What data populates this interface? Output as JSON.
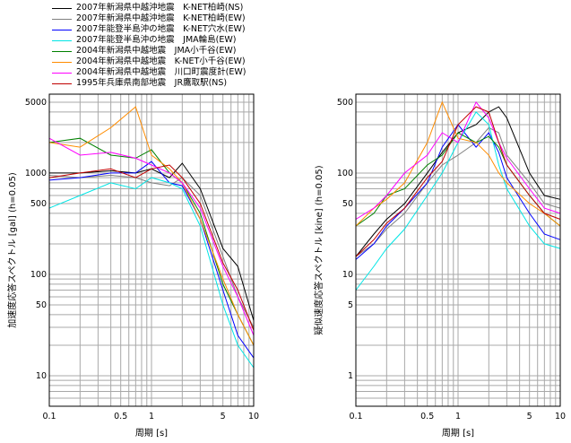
{
  "legend": [
    {
      "label": "2007年新潟県中越沖地震　K-NET柏崎(NS)",
      "color": "#000000"
    },
    {
      "label": "2007年新潟県中越沖地震　K-NET柏崎(EW)",
      "color": "#808080"
    },
    {
      "label": "2007年能登半島沖の地震　K-NET穴水(EW)",
      "color": "#0000ff"
    },
    {
      "label": "2007年能登半島沖の地震　JMA輪島(EW)",
      "color": "#00e5e5"
    },
    {
      "label": "2004年新潟県中越地震　JMA小千谷(EW)",
      "color": "#008000"
    },
    {
      "label": "2004年新潟県中越地震　K-NET小千谷(EW)",
      "color": "#ff8c00"
    },
    {
      "label": "2004年新潟県中越地震　川口町震度計(EW)",
      "color": "#ff00ff"
    },
    {
      "label": "1995年兵庫県南部地震　JR鷹取駅(NS)",
      "color": "#c00000"
    }
  ],
  "chart_data": [
    {
      "type": "line",
      "xlabel": "周期 [s]",
      "ylabel": "加速度応答スペクトル [gal] (h=0.05)",
      "xscale": "log",
      "yscale": "log",
      "xlim": [
        0.1,
        10
      ],
      "ylim": [
        5,
        6000
      ],
      "xticks": [
        {
          "v": 0.1,
          "t": "0.1"
        },
        {
          "v": 0.5,
          "t": "0.5"
        },
        {
          "v": 1,
          "t": "1"
        },
        {
          "v": 5,
          "t": "5"
        },
        {
          "v": 10,
          "t": "10"
        }
      ],
      "yticks": [
        {
          "v": 10,
          "t": "10"
        },
        {
          "v": 50,
          "t": "50"
        },
        {
          "v": 100,
          "t": "100"
        },
        {
          "v": 500,
          "t": "500"
        },
        {
          "v": 1000,
          "t": "1000"
        },
        {
          "v": 5000,
          "t": "5000"
        }
      ],
      "grid": true,
      "series": [
        {
          "name": "2007年新潟県中越沖地震　K-NET柏崎(NS)",
          "x": [
            0.1,
            0.2,
            0.4,
            0.7,
            1.0,
            1.5,
            2.0,
            3.0,
            5.0,
            7.0,
            10.0
          ],
          "y": [
            1000,
            1000,
            1050,
            1000,
            1100,
            900,
            1250,
            700,
            180,
            120,
            35
          ]
        },
        {
          "name": "2007年新潟県中越沖地震　K-NET柏崎(EW)",
          "x": [
            0.1,
            0.2,
            0.4,
            0.7,
            1.0,
            1.5,
            2.0,
            3.0,
            5.0,
            7.0,
            10.0
          ],
          "y": [
            950,
            900,
            950,
            900,
            800,
            750,
            900,
            600,
            150,
            60,
            30
          ]
        },
        {
          "name": "2007年能登半島沖の地震　K-NET穴水(EW)",
          "x": [
            0.1,
            0.2,
            0.4,
            0.7,
            1.0,
            1.5,
            2.0,
            3.0,
            5.0,
            7.0,
            10.0
          ],
          "y": [
            850,
            900,
            1000,
            1000,
            1300,
            800,
            750,
            350,
            70,
            25,
            15
          ]
        },
        {
          "name": "2007年能登半島沖の地震　JMA輪島(EW)",
          "x": [
            0.1,
            0.2,
            0.4,
            0.7,
            1.0,
            1.5,
            2.0,
            3.0,
            5.0,
            7.0,
            10.0
          ],
          "y": [
            450,
            600,
            800,
            700,
            900,
            800,
            700,
            300,
            50,
            20,
            12
          ]
        },
        {
          "name": "2004年新潟県中越地震　JMA小千谷(EW)",
          "x": [
            0.1,
            0.2,
            0.4,
            0.7,
            1.0,
            1.5,
            2.0,
            3.0,
            5.0,
            7.0,
            10.0
          ],
          "y": [
            2000,
            2200,
            1500,
            1400,
            1700,
            1000,
            800,
            400,
            80,
            40,
            20
          ]
        },
        {
          "name": "2004年新潟県中越地震　K-NET小千谷(EW)",
          "x": [
            0.1,
            0.2,
            0.4,
            0.7,
            1.0,
            1.5,
            2.0,
            3.0,
            5.0,
            7.0,
            10.0
          ],
          "y": [
            2000,
            1800,
            2800,
            4500,
            1500,
            1100,
            800,
            350,
            90,
            40,
            20
          ]
        },
        {
          "name": "2004年新潟県中越地震　川口町震度計(EW)",
          "x": [
            0.1,
            0.2,
            0.4,
            0.7,
            1.0,
            1.5,
            2.0,
            3.0,
            5.0,
            7.0,
            10.0
          ],
          "y": [
            2200,
            1500,
            1600,
            1400,
            1200,
            1000,
            800,
            450,
            120,
            60,
            25
          ]
        },
        {
          "name": "1995年兵庫県南部地震　JR鷹取駅(NS)",
          "x": [
            0.1,
            0.2,
            0.4,
            0.7,
            1.0,
            1.5,
            2.0,
            3.0,
            5.0,
            7.0,
            10.0
          ],
          "y": [
            900,
            1000,
            1100,
            900,
            1100,
            1200,
            900,
            500,
            130,
            70,
            28
          ]
        }
      ]
    },
    {
      "type": "line",
      "xlabel": "周期 [s]",
      "ylabel": "疑似速度応答スペクトル [kine] (h=0.05)",
      "xscale": "log",
      "yscale": "log",
      "xlim": [
        0.1,
        10
      ],
      "ylim": [
        0.5,
        600
      ],
      "xticks": [
        {
          "v": 0.1,
          "t": "0.1"
        },
        {
          "v": 0.5,
          "t": "0.5"
        },
        {
          "v": 1,
          "t": "1"
        },
        {
          "v": 5,
          "t": "5"
        },
        {
          "v": 10,
          "t": "10"
        }
      ],
      "yticks": [
        {
          "v": 1,
          "t": "1"
        },
        {
          "v": 5,
          "t": "5"
        },
        {
          "v": 10,
          "t": "10"
        },
        {
          "v": 50,
          "t": "50"
        },
        {
          "v": 100,
          "t": "100"
        },
        {
          "v": 500,
          "t": "500"
        }
      ],
      "grid": true,
      "series": [
        {
          "name": "2007年新潟県中越沖地震　K-NET柏崎(NS)",
          "x": [
            0.1,
            0.15,
            0.2,
            0.3,
            0.5,
            0.7,
            1.0,
            1.5,
            2.0,
            2.5,
            3.0,
            5.0,
            7.0,
            10.0
          ],
          "y": [
            15,
            25,
            35,
            50,
            100,
            160,
            250,
            300,
            400,
            450,
            350,
            100,
            60,
            55
          ]
        },
        {
          "name": "2007年新潟県中越沖地震　K-NET柏崎(EW)",
          "x": [
            0.1,
            0.15,
            0.2,
            0.3,
            0.5,
            0.7,
            1.0,
            1.5,
            2.0,
            2.5,
            3.0,
            5.0,
            7.0,
            10.0
          ],
          "y": [
            15,
            20,
            28,
            40,
            80,
            120,
            150,
            200,
            280,
            250,
            150,
            80,
            50,
            45
          ]
        },
        {
          "name": "2007年能登半島沖の地震　K-NET穴水(EW)",
          "x": [
            0.1,
            0.15,
            0.2,
            0.3,
            0.5,
            0.7,
            1.0,
            1.5,
            2.0,
            2.5,
            3.0,
            5.0,
            7.0,
            10.0
          ],
          "y": [
            14,
            20,
            30,
            45,
            80,
            180,
            300,
            180,
            250,
            160,
            90,
            40,
            25,
            22
          ]
        },
        {
          "name": "2007年能登半島沖の地震　JMA輪島(EW)",
          "x": [
            0.1,
            0.15,
            0.2,
            0.3,
            0.5,
            0.7,
            1.0,
            1.5,
            2.0,
            2.5,
            3.0,
            5.0,
            7.0,
            10.0
          ],
          "y": [
            7,
            12,
            18,
            28,
            60,
            100,
            200,
            400,
            300,
            120,
            70,
            30,
            20,
            18
          ]
        },
        {
          "name": "2004年新潟県中越地震　JMA小千谷(EW)",
          "x": [
            0.1,
            0.15,
            0.2,
            0.3,
            0.5,
            0.7,
            1.0,
            1.5,
            2.0,
            2.5,
            3.0,
            5.0,
            7.0,
            10.0
          ],
          "y": [
            30,
            40,
            60,
            70,
            120,
            150,
            250,
            200,
            230,
            180,
            120,
            60,
            40,
            30
          ]
        },
        {
          "name": "2004年新潟県中越地震　K-NET小千谷(EW)",
          "x": [
            0.1,
            0.15,
            0.2,
            0.3,
            0.5,
            0.7,
            1.0,
            1.5,
            2.0,
            2.5,
            3.0,
            5.0,
            7.0,
            10.0
          ],
          "y": [
            30,
            45,
            55,
            80,
            200,
            500,
            220,
            200,
            150,
            100,
            80,
            50,
            40,
            30
          ]
        },
        {
          "name": "2004年新潟県中越地震　川口町震度計(EW)",
          "x": [
            0.1,
            0.15,
            0.2,
            0.3,
            0.5,
            0.7,
            1.0,
            1.5,
            2.0,
            2.5,
            3.0,
            5.0,
            7.0,
            10.0
          ],
          "y": [
            35,
            45,
            60,
            100,
            150,
            250,
            200,
            500,
            350,
            200,
            140,
            70,
            45,
            40
          ]
        },
        {
          "name": "1995年兵庫県南部地震　JR鷹取駅(NS)",
          "x": [
            0.1,
            0.15,
            0.2,
            0.3,
            0.5,
            0.7,
            1.0,
            1.5,
            2.0,
            2.5,
            3.0,
            5.0,
            7.0,
            10.0
          ],
          "y": [
            15,
            22,
            32,
            45,
            90,
            130,
            300,
            450,
            400,
            200,
            120,
            60,
            40,
            35
          ]
        }
      ]
    }
  ]
}
